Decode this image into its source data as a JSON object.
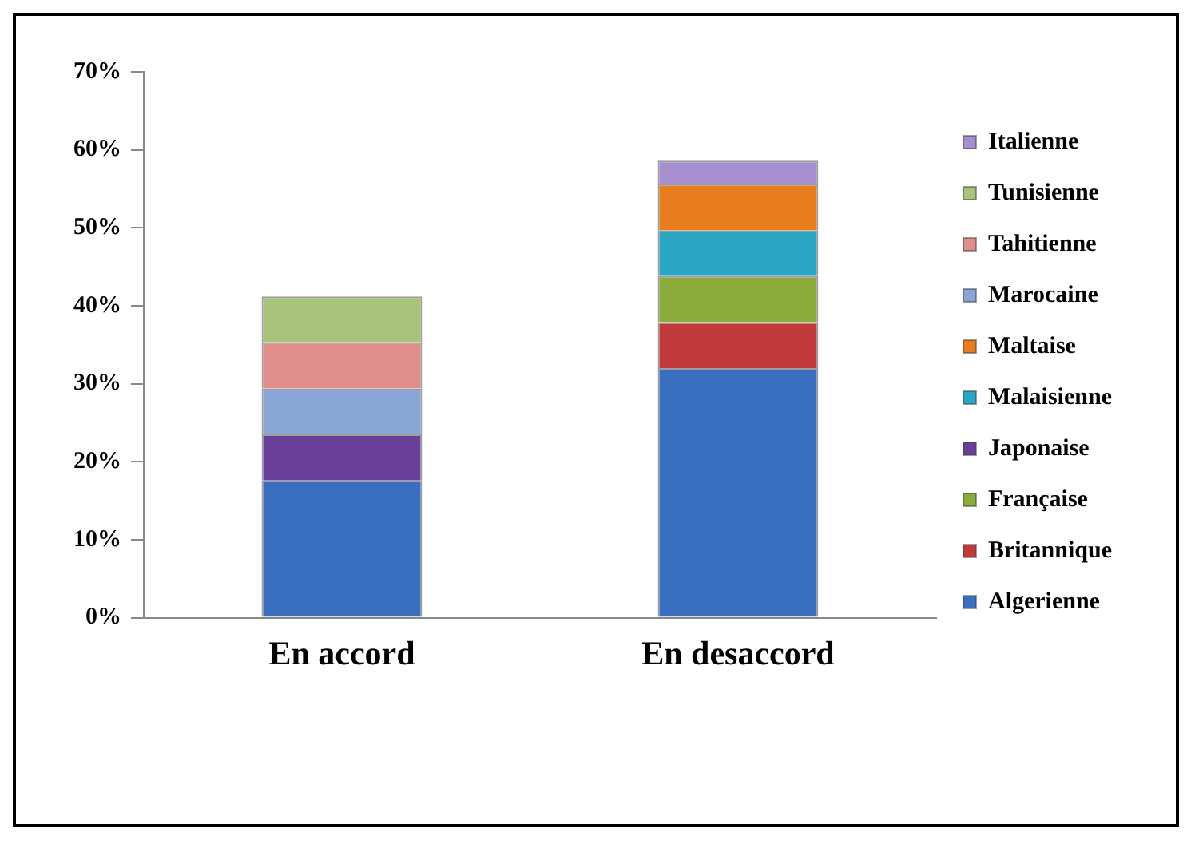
{
  "chart_data": {
    "type": "bar",
    "stacked": true,
    "categories": [
      "En accord",
      "En desaccord"
    ],
    "series": [
      {
        "name": "Algerienne",
        "color": "#3a6fbf",
        "values": [
          17.6,
          32.0
        ]
      },
      {
        "name": "Britannique",
        "color": "#c0393b",
        "values": [
          null,
          5.9
        ]
      },
      {
        "name": "Française",
        "color": "#8aac3a",
        "values": [
          null,
          5.9
        ]
      },
      {
        "name": "Japonaise",
        "color": "#6a3f9a",
        "values": [
          5.9,
          null
        ]
      },
      {
        "name": "Malaisienne",
        "color": "#2aa6c4",
        "values": [
          null,
          5.9
        ]
      },
      {
        "name": "Maltaise",
        "color": "#e87d20",
        "values": [
          null,
          5.9
        ]
      },
      {
        "name": "Marocaine",
        "color": "#8aa6d6",
        "values": [
          5.9,
          null
        ]
      },
      {
        "name": "Tahitienne",
        "color": "#e08e8c",
        "values": [
          5.9,
          null
        ]
      },
      {
        "name": "Tunisienne",
        "color": "#a8c47a",
        "values": [
          5.9,
          null
        ]
      },
      {
        "name": "Italienne",
        "color": "#a78fcf",
        "values": [
          null,
          3.0
        ]
      }
    ],
    "ylim": [
      0,
      70
    ],
    "yticks": [
      {
        "value": 0,
        "label": "0%"
      },
      {
        "value": 10,
        "label": "10%"
      },
      {
        "value": 20,
        "label": "20%"
      },
      {
        "value": 30,
        "label": "30%"
      },
      {
        "value": 40,
        "label": "40%"
      },
      {
        "value": 50,
        "label": "50%"
      },
      {
        "value": 60,
        "label": "60%"
      },
      {
        "value": 70,
        "label": "70%"
      }
    ],
    "grid": false,
    "legend": "right"
  }
}
